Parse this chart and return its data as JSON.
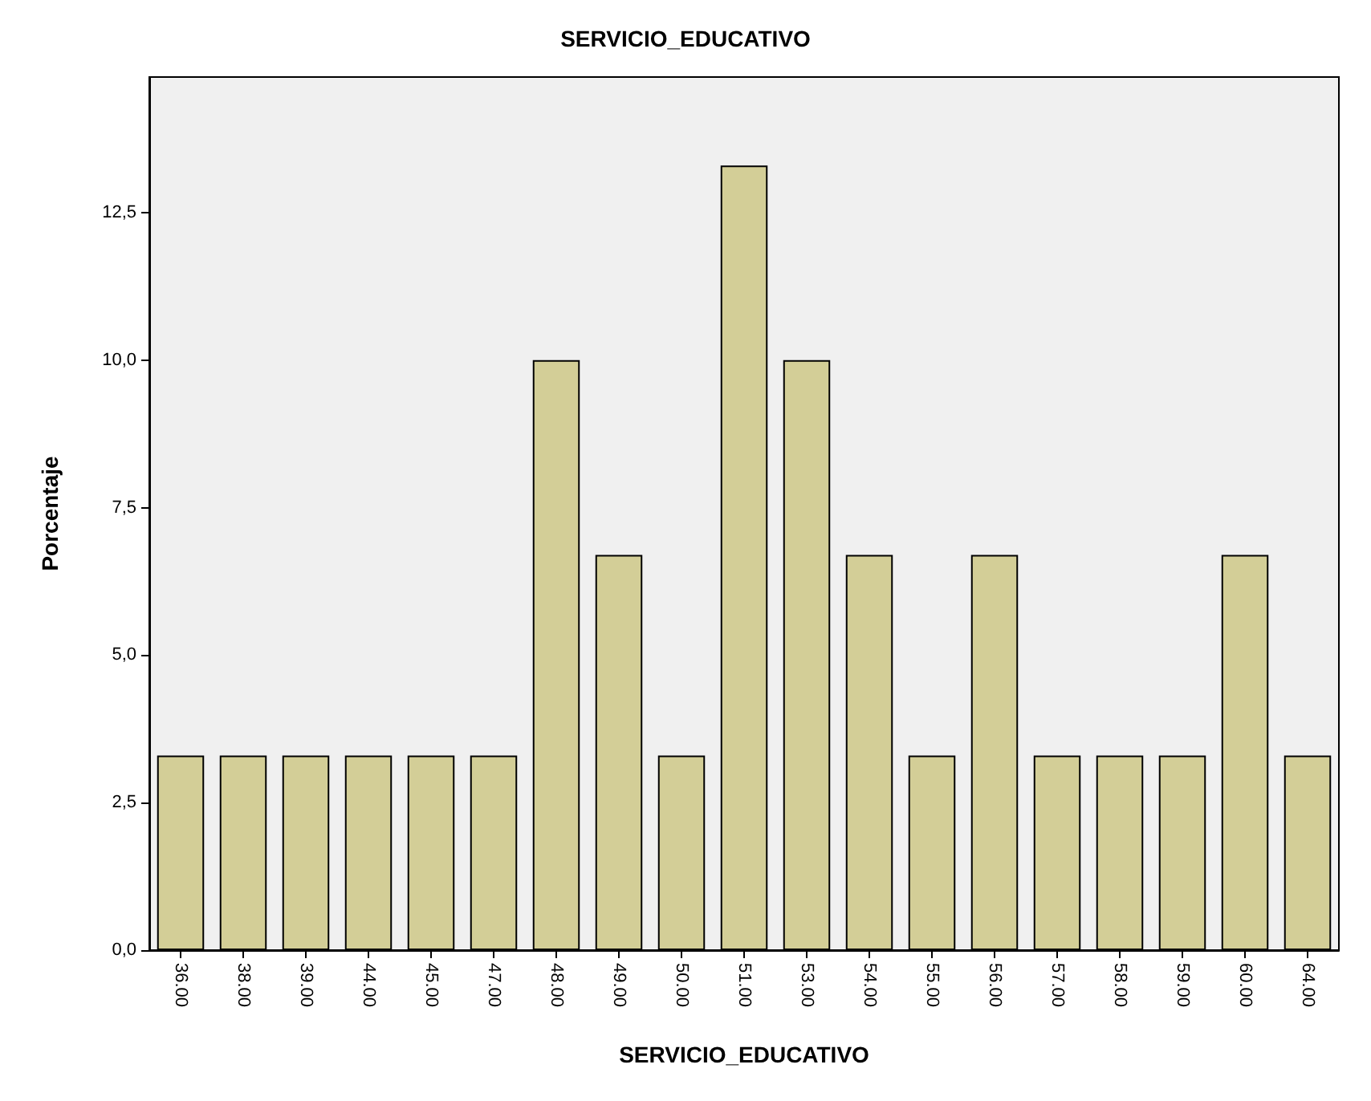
{
  "chart_data": {
    "type": "bar",
    "title": "SERVICIO_EDUCATIVO",
    "xlabel": "SERVICIO_EDUCATIVO",
    "ylabel": "Porcentaje",
    "categories": [
      "36.00",
      "38.00",
      "39.00",
      "44.00",
      "45.00",
      "47.00",
      "48.00",
      "49.00",
      "50.00",
      "51.00",
      "53.00",
      "54.00",
      "55.00",
      "56.00",
      "57.00",
      "58.00",
      "59.00",
      "60.00",
      "64.00"
    ],
    "values": [
      3.3,
      3.3,
      3.3,
      3.3,
      3.3,
      3.3,
      10,
      6.7,
      3.3,
      13.3,
      10,
      6.7,
      3.3,
      6.7,
      3.3,
      3.3,
      3.3,
      6.7,
      3.3
    ],
    "color": "#d3ce97",
    "ylim": [
      0,
      14.8
    ],
    "yticks": [
      {
        "value": 0,
        "label": "0,0"
      },
      {
        "value": 2.5,
        "label": "2,5"
      },
      {
        "value": 5,
        "label": "5,0"
      },
      {
        "value": 7.5,
        "label": "7,5"
      },
      {
        "value": 10,
        "label": "10,0"
      },
      {
        "value": 12.5,
        "label": "12,5"
      }
    ],
    "grid": false
  }
}
